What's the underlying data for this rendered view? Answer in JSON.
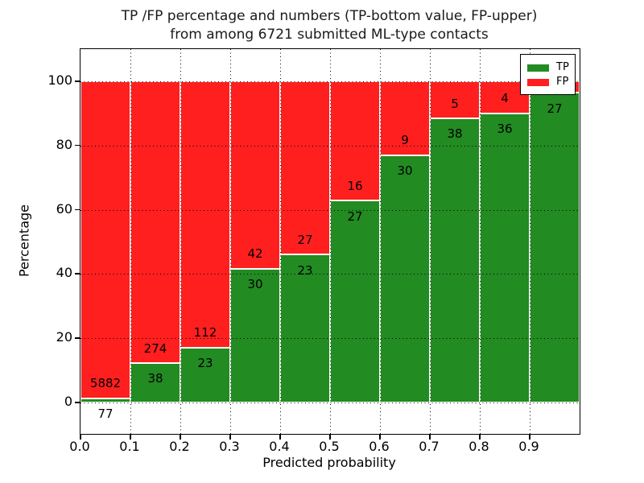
{
  "title": {
    "line1": "TP /FP percentage and numbers (TP-bottom value, FP-upper)",
    "line2": "from among 6721 submitted ML-type contacts"
  },
  "chart_data": {
    "type": "bar",
    "stacked": true,
    "title": "TP /FP percentage and numbers (TP-bottom value, FP-upper) from among 6721 submitted ML-type contacts",
    "xlabel": "Predicted probability",
    "ylabel": "Percentage",
    "xlim": [
      0.0,
      1.0
    ],
    "ylim": [
      -10,
      110
    ],
    "grid": true,
    "bin_edges": [
      0.0,
      0.1,
      0.2,
      0.3,
      0.4,
      0.5,
      0.6,
      0.7,
      0.8,
      0.9,
      1.0
    ],
    "x_tick_labels": [
      "0.0",
      "0.1",
      "0.2",
      "0.3",
      "0.4",
      "0.5",
      "0.6",
      "0.7",
      "0.8",
      "0.9"
    ],
    "y_ticks": [
      0,
      20,
      40,
      60,
      80,
      100
    ],
    "y_tick_labels": [
      "0",
      "20",
      "40",
      "60",
      "80",
      "100"
    ],
    "series": [
      {
        "name": "TP",
        "color": "#228B22",
        "counts": [
          77,
          38,
          23,
          30,
          23,
          27,
          30,
          38,
          36,
          27
        ],
        "pct": [
          1.3,
          12.2,
          17.0,
          41.7,
          46.0,
          62.8,
          76.9,
          88.4,
          90.0,
          96.4
        ],
        "labels": [
          "77",
          "38",
          "23",
          "30",
          "23",
          "27",
          "30",
          "38",
          "36",
          "27"
        ]
      },
      {
        "name": "FP",
        "color": "#FF1F1F",
        "counts": [
          5882,
          274,
          112,
          42,
          27,
          16,
          9,
          5,
          4,
          null
        ],
        "pct": [
          98.7,
          87.8,
          83.0,
          58.3,
          54.0,
          37.2,
          23.1,
          11.6,
          10.0,
          3.6
        ],
        "labels": [
          "5882",
          "274",
          "112",
          "42",
          "27",
          "16",
          "9",
          "5",
          "4",
          ""
        ]
      }
    ],
    "legend": {
      "position": "upper right",
      "items": [
        {
          "label": "TP",
          "color": "#228B22"
        },
        {
          "label": "FP",
          "color": "#FF1F1F"
        }
      ]
    }
  }
}
